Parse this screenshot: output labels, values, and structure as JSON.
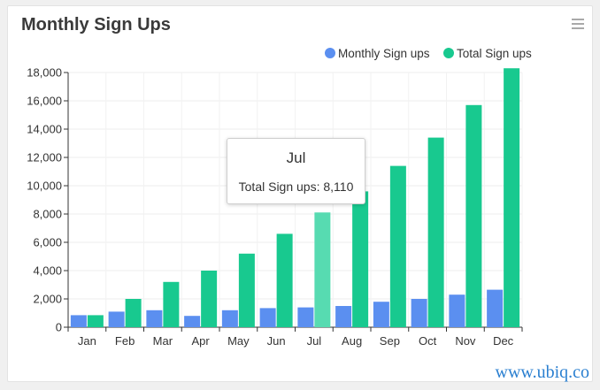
{
  "card": {
    "title": "Monthly Sign Ups",
    "menu_icon": "hamburger-menu-icon"
  },
  "watermark": "www.ubiq.co",
  "tooltip": {
    "title": "Jul",
    "series_label": "Total Sign ups",
    "value_text": "8,110",
    "text": "Total Sign ups: 8,110"
  },
  "colors": {
    "monthly": "#5b8ff0",
    "total": "#18c98f",
    "total_highlight": "#57dbb1"
  },
  "chart_data": {
    "type": "bar",
    "title": "Monthly Sign Ups",
    "categories": [
      "Jan",
      "Feb",
      "Mar",
      "Apr",
      "May",
      "Jun",
      "Jul",
      "Aug",
      "Sep",
      "Oct",
      "Nov",
      "Dec"
    ],
    "series": [
      {
        "name": "Monthly Sign ups",
        "values": [
          850,
          1100,
          1200,
          800,
          1200,
          1350,
          1400,
          1500,
          1800,
          2000,
          2300,
          2650
        ]
      },
      {
        "name": "Total Sign ups",
        "values": [
          850,
          2000,
          3200,
          4000,
          5200,
          6600,
          8110,
          9600,
          11400,
          13400,
          15700,
          18300
        ]
      }
    ],
    "yticks": [
      0,
      2000,
      4000,
      6000,
      8000,
      10000,
      12000,
      14000,
      16000,
      18000
    ],
    "ytick_labels": [
      "0",
      "2,000",
      "4,000",
      "6,000",
      "8,000",
      "10,000",
      "12,000",
      "14,000",
      "16,000",
      "18,000"
    ],
    "ylim": [
      0,
      18000
    ],
    "xlabel": "",
    "ylabel": "",
    "legend": "top-right",
    "grid": true,
    "highlight": {
      "category": "Jul",
      "series": "Total Sign ups"
    }
  }
}
